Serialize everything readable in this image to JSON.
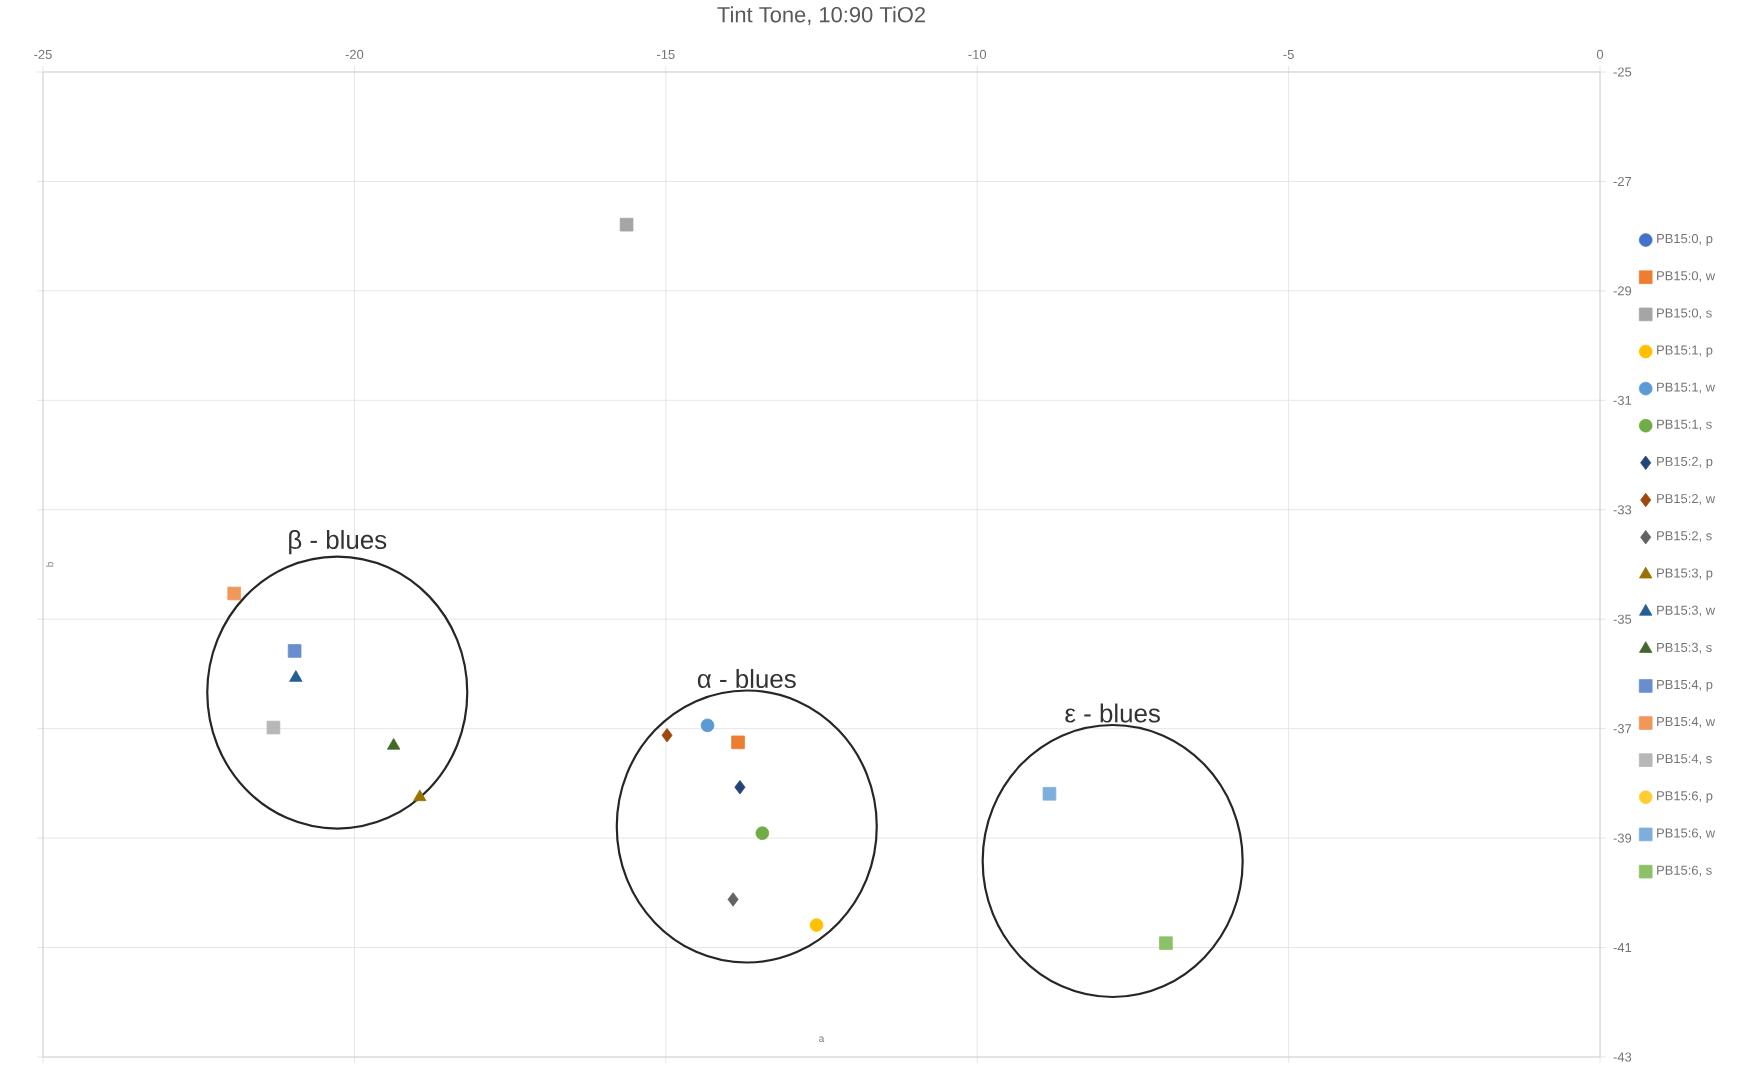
{
  "chart_data": {
    "type": "scatter",
    "title": "Tint Tone, 10:90 TiO2",
    "xlabel": "a",
    "ylabel": "b",
    "xlim": [
      -25,
      0
    ],
    "xticks": [
      -25,
      -20,
      -15,
      -10,
      -5,
      0
    ],
    "ylim": [
      -43,
      -25
    ],
    "yticks": [
      -43,
      -41,
      -39,
      -37,
      -35,
      -33,
      -31,
      -29,
      -27,
      -25
    ],
    "grid": true,
    "legend": "right",
    "annotations": [
      "β - blues",
      "α - blues",
      "ε - blues"
    ],
    "series": [
      {
        "name": "PB15:0, p",
        "color": "#4472c4",
        "marker": "circle",
        "x": [
          null
        ],
        "values": [
          null
        ]
      },
      {
        "name": "PB15:0, w",
        "color": "#ed7d31",
        "marker": "square",
        "x": [
          -13.84
        ],
        "values": [
          -37.25
        ]
      },
      {
        "name": "PB15:0, s",
        "color": "#a5a5a5",
        "marker": "square",
        "x": [
          -15.63
        ],
        "values": [
          -27.79
        ]
      },
      {
        "name": "PB15:1, p",
        "color": "#ffc000",
        "marker": "circle",
        "x": [
          -12.58
        ],
        "values": [
          -40.59
        ]
      },
      {
        "name": "PB15:1, w",
        "color": "#5b9bd5",
        "marker": "circle",
        "x": [
          -14.33
        ],
        "values": [
          -36.94
        ]
      },
      {
        "name": "PB15:1, s",
        "color": "#70ad47",
        "marker": "circle",
        "x": [
          -13.45
        ],
        "values": [
          -38.91
        ]
      },
      {
        "name": "PB15:2, p",
        "color": "#264478",
        "marker": "diamond",
        "x": [
          -13.81
        ],
        "values": [
          -38.07
        ]
      },
      {
        "name": "PB15:2, w",
        "color": "#9e480e",
        "marker": "diamond",
        "x": [
          -14.98
        ],
        "values": [
          -37.12
        ]
      },
      {
        "name": "PB15:2, s",
        "color": "#636363",
        "marker": "diamond",
        "x": [
          -13.92
        ],
        "values": [
          -40.12
        ]
      },
      {
        "name": "PB15:3, p",
        "color": "#997300",
        "marker": "triangle",
        "x": [
          -18.95
        ],
        "values": [
          -38.25
        ]
      },
      {
        "name": "PB15:3, w",
        "color": "#255e91",
        "marker": "triangle",
        "x": [
          -20.94
        ],
        "values": [
          -36.07
        ]
      },
      {
        "name": "PB15:3, s",
        "color": "#43682b",
        "marker": "triangle",
        "x": [
          -19.37
        ],
        "values": [
          -37.31
        ]
      },
      {
        "name": "PB15:4, p",
        "color": "#698ed0",
        "marker": "square",
        "x": [
          -20.96
        ],
        "values": [
          -35.58
        ]
      },
      {
        "name": "PB15:4, w",
        "color": "#f1975a",
        "marker": "square",
        "x": [
          -21.93
        ],
        "values": [
          -34.53
        ]
      },
      {
        "name": "PB15:4, s",
        "color": "#b7b7b7",
        "marker": "square",
        "x": [
          -21.3
        ],
        "values": [
          -36.98
        ]
      },
      {
        "name": "PB15:6, p",
        "color": "#ffcd33",
        "marker": "circle",
        "x": [
          null
        ],
        "values": [
          null
        ]
      },
      {
        "name": "PB15:6, w",
        "color": "#7cafdd",
        "marker": "square",
        "x": [
          -8.84
        ],
        "values": [
          -38.19
        ]
      },
      {
        "name": "PB15:6, s",
        "color": "#8cc168",
        "marker": "square",
        "x": [
          -6.97
        ],
        "values": [
          -40.92
        ]
      }
    ]
  }
}
